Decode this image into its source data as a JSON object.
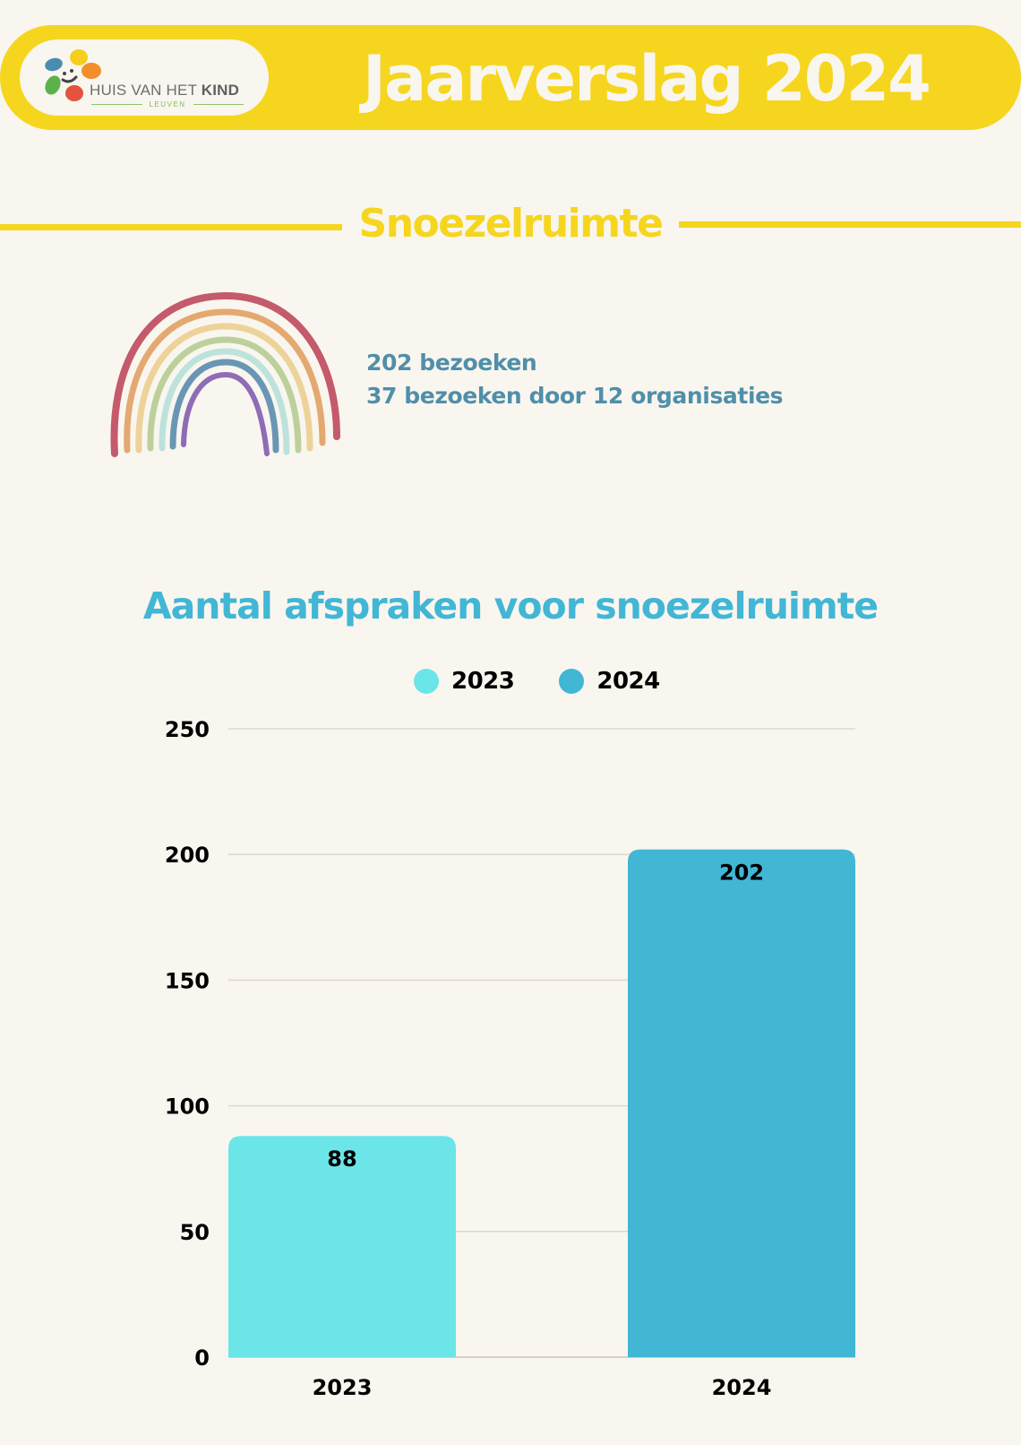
{
  "header": {
    "logo": {
      "name_regular": "HUIS VAN HET ",
      "name_bold": "KIND",
      "city": "LEUVEN",
      "petal_colors": [
        "#f6cf1e",
        "#f28e2b",
        "#e4533d",
        "#5db14c",
        "#4a8db3"
      ]
    },
    "title": "Jaarverslag 2024"
  },
  "section": {
    "title": "Snoezelruimte",
    "stats": [
      "202 bezoeken",
      "37 bezoeken door 12 organisaties"
    ],
    "rainbow_icon": "rainbow-icon"
  },
  "colors": {
    "yellow": "#f6d51e",
    "background": "#f9f6ef",
    "accent_blue": "#42b6d5",
    "stats_blue": "#4f8fa9"
  },
  "chart_data": {
    "type": "bar",
    "title": "Aantal afspraken voor snoezelruimte",
    "categories": [
      "2023",
      "2024"
    ],
    "values": [
      88,
      202
    ],
    "series": [
      {
        "name": "2023",
        "values": [
          88,
          null
        ],
        "color": "#6ce5e8"
      },
      {
        "name": "2024",
        "values": [
          null,
          202
        ],
        "color": "#42b6d5"
      }
    ],
    "legend": [
      "2023",
      "2024"
    ],
    "legend_position": "top-center",
    "xlabel": "",
    "ylabel": "",
    "ylim": [
      0,
      250
    ],
    "yticks": [
      0,
      50,
      100,
      150,
      200,
      250
    ],
    "grid": true,
    "data_labels": [
      "88",
      "202"
    ]
  }
}
